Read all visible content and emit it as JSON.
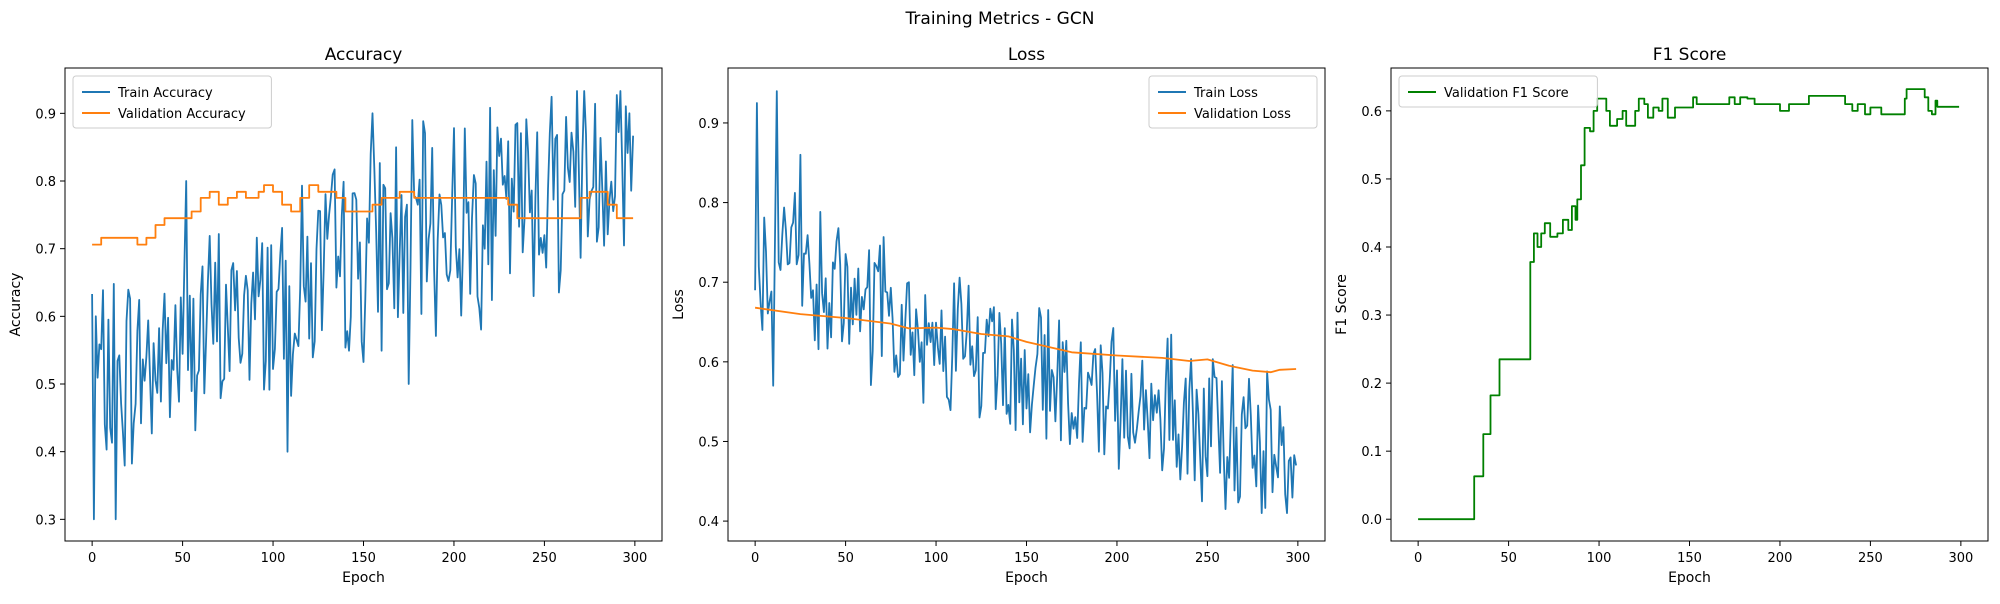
{
  "figure": {
    "suptitle": "Training Metrics - GCN"
  },
  "chart_data": [
    {
      "type": "line",
      "title": "Accuracy",
      "xlabel": "Epoch",
      "ylabel": "Accuracy",
      "xlim": [
        -15,
        315
      ],
      "ylim": [
        0.268,
        0.967
      ],
      "xticks": [
        0,
        50,
        100,
        150,
        200,
        250,
        300
      ],
      "yticks": [
        0.3,
        0.4,
        0.5,
        0.6,
        0.7,
        0.8,
        0.9
      ],
      "ytick_format": 1,
      "legend": "upper-left",
      "series": [
        {
          "name": "Train Accuracy",
          "color": "#1f77b4",
          "style": "noisy",
          "anchors": [
            [
              0,
              0.5
            ],
            [
              25,
              0.52
            ],
            [
              50,
              0.56
            ],
            [
              75,
              0.59
            ],
            [
              100,
              0.63
            ],
            [
              125,
              0.66
            ],
            [
              150,
              0.69
            ],
            [
              175,
              0.72
            ],
            [
              200,
              0.74
            ],
            [
              225,
              0.76
            ],
            [
              250,
              0.79
            ],
            [
              275,
              0.82
            ],
            [
              299,
              0.84
            ]
          ],
          "amp": 0.13,
          "clip": [
            0.3,
            0.933
          ],
          "fixed": [
            [
              0,
              0.633
            ],
            [
              1,
              0.3
            ],
            [
              2,
              0.6
            ],
            [
              13,
              0.3
            ],
            [
              52,
              0.8
            ],
            [
              108,
              0.4
            ],
            [
              155,
              0.9
            ],
            [
              175,
              0.5
            ],
            [
              268,
              0.933
            ],
            [
              292,
              0.933
            ],
            [
              297,
              0.9
            ],
            [
              299,
              0.867
            ]
          ]
        },
        {
          "name": "Validation Accuracy",
          "color": "#ff7f0e",
          "style": "step",
          "points": [
            [
              0,
              0.706
            ],
            [
              5,
              0.716
            ],
            [
              25,
              0.706
            ],
            [
              30,
              0.716
            ],
            [
              35,
              0.735
            ],
            [
              40,
              0.745
            ],
            [
              55,
              0.755
            ],
            [
              60,
              0.775
            ],
            [
              65,
              0.784
            ],
            [
              70,
              0.765
            ],
            [
              75,
              0.775
            ],
            [
              80,
              0.784
            ],
            [
              85,
              0.775
            ],
            [
              92,
              0.784
            ],
            [
              95,
              0.794
            ],
            [
              100,
              0.784
            ],
            [
              105,
              0.765
            ],
            [
              110,
              0.755
            ],
            [
              115,
              0.775
            ],
            [
              120,
              0.794
            ],
            [
              125,
              0.784
            ],
            [
              135,
              0.775
            ],
            [
              140,
              0.755
            ],
            [
              155,
              0.765
            ],
            [
              160,
              0.775
            ],
            [
              170,
              0.784
            ],
            [
              178,
              0.775
            ],
            [
              230,
              0.765
            ],
            [
              235,
              0.745
            ],
            [
              270,
              0.775
            ],
            [
              275,
              0.784
            ],
            [
              285,
              0.765
            ],
            [
              290,
              0.745
            ],
            [
              299,
              0.745
            ]
          ]
        }
      ]
    },
    {
      "type": "line",
      "title": "Loss",
      "xlabel": "Epoch",
      "ylabel": "Loss",
      "xlim": [
        -15,
        315
      ],
      "ylim": [
        0.375,
        0.969
      ],
      "xticks": [
        0,
        50,
        100,
        150,
        200,
        250,
        300
      ],
      "yticks": [
        0.4,
        0.5,
        0.6,
        0.7,
        0.8,
        0.9
      ],
      "ytick_format": 1,
      "legend": "upper-right",
      "series": [
        {
          "name": "Train Loss",
          "color": "#1f77b4",
          "style": "noisy",
          "anchors": [
            [
              0,
              0.72
            ],
            [
              25,
              0.71
            ],
            [
              50,
              0.67
            ],
            [
              75,
              0.65
            ],
            [
              100,
              0.63
            ],
            [
              125,
              0.61
            ],
            [
              150,
              0.59
            ],
            [
              175,
              0.57
            ],
            [
              200,
              0.55
            ],
            [
              225,
              0.54
            ],
            [
              250,
              0.52
            ],
            [
              275,
              0.5
            ],
            [
              299,
              0.48
            ]
          ],
          "amp": 0.08,
          "clip": [
            0.41,
            0.94
          ],
          "fixed": [
            [
              0,
              0.69
            ],
            [
              1,
              0.925
            ],
            [
              4,
              0.64
            ],
            [
              10,
              0.57
            ],
            [
              12,
              0.94
            ],
            [
              25,
              0.86
            ],
            [
              260,
              0.415
            ],
            [
              280,
              0.41
            ],
            [
              294,
              0.41
            ],
            [
              296,
              0.48
            ],
            [
              299,
              0.47
            ]
          ]
        },
        {
          "name": "Validation Loss",
          "color": "#ff7f0e",
          "style": "line",
          "points": [
            [
              0,
              0.668
            ],
            [
              25,
              0.66
            ],
            [
              50,
              0.655
            ],
            [
              75,
              0.648
            ],
            [
              85,
              0.642
            ],
            [
              100,
              0.643
            ],
            [
              110,
              0.641
            ],
            [
              125,
              0.635
            ],
            [
              140,
              0.632
            ],
            [
              150,
              0.625
            ],
            [
              175,
              0.612
            ],
            [
              200,
              0.608
            ],
            [
              225,
              0.605
            ],
            [
              240,
              0.601
            ],
            [
              250,
              0.603
            ],
            [
              262,
              0.595
            ],
            [
              275,
              0.589
            ],
            [
              285,
              0.587
            ],
            [
              290,
              0.59
            ],
            [
              299,
              0.591
            ]
          ]
        }
      ]
    },
    {
      "type": "line",
      "title": "F1 Score",
      "xlabel": "Epoch",
      "ylabel": "F1 Score",
      "xlim": [
        -15,
        315
      ],
      "ylim": [
        -0.032,
        0.663
      ],
      "xticks": [
        0,
        50,
        100,
        150,
        200,
        250,
        300
      ],
      "yticks": [
        0.0,
        0.1,
        0.2,
        0.3,
        0.4,
        0.5,
        0.6
      ],
      "ytick_format": 1,
      "legend": "upper-left",
      "series": [
        {
          "name": "Validation F1 Score",
          "color": "#008000",
          "style": "step",
          "points": [
            [
              0,
              0.0
            ],
            [
              30,
              0.0
            ],
            [
              31,
              0.063
            ],
            [
              35,
              0.063
            ],
            [
              36,
              0.125
            ],
            [
              39,
              0.125
            ],
            [
              40,
              0.182
            ],
            [
              44,
              0.182
            ],
            [
              45,
              0.235
            ],
            [
              61,
              0.235
            ],
            [
              62,
              0.378
            ],
            [
              64,
              0.42
            ],
            [
              66,
              0.4
            ],
            [
              68,
              0.42
            ],
            [
              70,
              0.435
            ],
            [
              73,
              0.415
            ],
            [
              77,
              0.42
            ],
            [
              80,
              0.44
            ],
            [
              83,
              0.425
            ],
            [
              85,
              0.46
            ],
            [
              87,
              0.44
            ],
            [
              88,
              0.47
            ],
            [
              90,
              0.52
            ],
            [
              92,
              0.575
            ],
            [
              95,
              0.57
            ],
            [
              97,
              0.6
            ],
            [
              99,
              0.618
            ],
            [
              102,
              0.618
            ],
            [
              104,
              0.6
            ],
            [
              106,
              0.578
            ],
            [
              110,
              0.588
            ],
            [
              113,
              0.6
            ],
            [
              115,
              0.578
            ],
            [
              120,
              0.6
            ],
            [
              122,
              0.618
            ],
            [
              125,
              0.61
            ],
            [
              127,
              0.59
            ],
            [
              130,
              0.605
            ],
            [
              133,
              0.6
            ],
            [
              135,
              0.618
            ],
            [
              138,
              0.59
            ],
            [
              142,
              0.605
            ],
            [
              145,
              0.605
            ],
            [
              150,
              0.605
            ],
            [
              152,
              0.62
            ],
            [
              154,
              0.61
            ],
            [
              160,
              0.61
            ],
            [
              170,
              0.61
            ],
            [
              172,
              0.62
            ],
            [
              175,
              0.61
            ],
            [
              178,
              0.62
            ],
            [
              182,
              0.618
            ],
            [
              186,
              0.61
            ],
            [
              195,
              0.61
            ],
            [
              200,
              0.6
            ],
            [
              205,
              0.61
            ],
            [
              215,
              0.61
            ],
            [
              216,
              0.622
            ],
            [
              235,
              0.622
            ],
            [
              236,
              0.61
            ],
            [
              240,
              0.6
            ],
            [
              243,
              0.61
            ],
            [
              247,
              0.595
            ],
            [
              250,
              0.605
            ],
            [
              255,
              0.605
            ],
            [
              256,
              0.595
            ],
            [
              268,
              0.595
            ],
            [
              269,
              0.618
            ],
            [
              270,
              0.632
            ],
            [
              278,
              0.632
            ],
            [
              280,
              0.62
            ],
            [
              282,
              0.6
            ],
            [
              284,
              0.595
            ],
            [
              286,
              0.615
            ],
            [
              287,
              0.606
            ],
            [
              299,
              0.606
            ]
          ]
        }
      ]
    }
  ]
}
